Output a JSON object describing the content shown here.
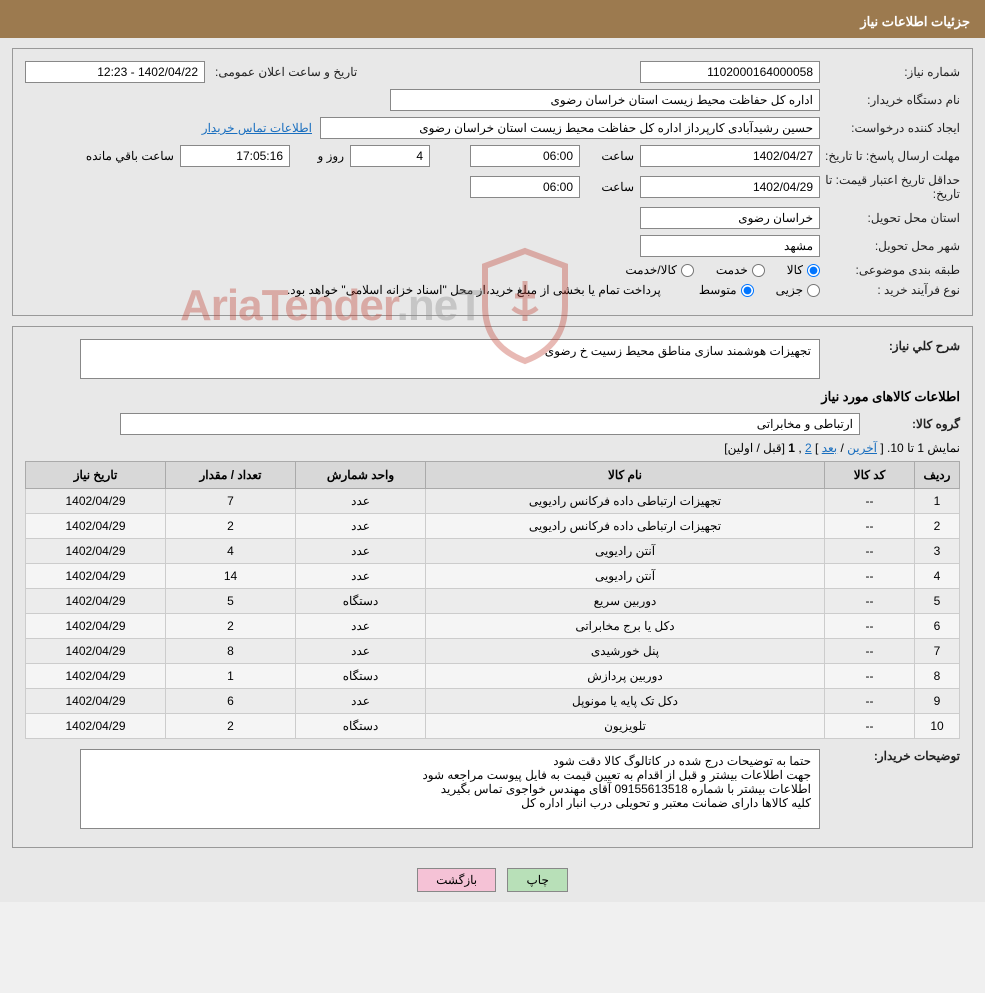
{
  "title": "جزئیات اطلاعات نیاز",
  "need_no_label": "شماره نیاز:",
  "need_no": "1102000164000058",
  "pub_date_label": "تاریخ و ساعت اعلان عمومی:",
  "pub_date": "1402/04/22 - 12:23",
  "buyer_label": "نام دستگاه خریدار:",
  "buyer": "اداره کل حفاظت محیط زیست استان خراسان رضوی",
  "requester_label": "ایجاد کننده درخواست:",
  "requester": "حسین رشیدآبادی کارپرداز اداره کل حفاظت محیط زیست استان خراسان رضوی",
  "contact_link": "اطلاعات تماس خریدار",
  "deadline_label": "مهلت ارسال پاسخ:",
  "till_date_label": "تا تاریخ:",
  "time_label": "ساعت",
  "deadline_date": "1402/04/27",
  "deadline_time": "06:00",
  "days": "4",
  "days_label": "روز و",
  "countdown": "17:05:16",
  "remain_label": "ساعت باقي مانده",
  "validity_label": "حداقل تاریخ اعتبار قیمت:",
  "validity_date": "1402/04/29",
  "validity_time": "06:00",
  "province_label": "استان محل تحویل:",
  "province": "خراسان رضوی",
  "city_label": "شهر محل تحویل:",
  "city": "مشهد",
  "category_label": "طبقه بندی موضوعی:",
  "cat_goods": "کالا",
  "cat_service": "خدمت",
  "cat_both": "کالا/خدمت",
  "proc_type_label": "نوع فرآیند خرید :",
  "proc_partial": "جزیی",
  "proc_medium": "متوسط",
  "proc_note": "پرداخت تمام یا بخشی از مبلغ خرید،از محل \"اسناد خزانه اسلامی\" خواهد بود.",
  "desc_label": "شرح کلي نیاز:",
  "desc": "تجهیزات هوشمند سازی مناطق محیط زسیت خ رضوی",
  "goods_info_label": "اطلاعات کالاهای مورد نیاز",
  "group_label": "گروه کالا:",
  "group": "ارتباطی و مخابراتی",
  "pager_text": "نمایش 1 تا 10.",
  "pager_last": "آخرین",
  "pager_next": "بعد",
  "pager_2": "2",
  "pager_1": "1",
  "pager_prev": "قبل",
  "pager_first": "اولین",
  "cols": {
    "idx": "ردیف",
    "code": "کد کالا",
    "name": "نام کالا",
    "unit": "واحد شمارش",
    "qty": "تعداد / مقدار",
    "date": "تاریخ نیاز"
  },
  "rows": [
    {
      "idx": "1",
      "code": "--",
      "name": "تجهیزات ارتباطی داده فرکانس رادیویی",
      "unit": "عدد",
      "qty": "7",
      "date": "1402/04/29"
    },
    {
      "idx": "2",
      "code": "--",
      "name": "تجهیزات ارتباطی داده فرکانس رادیویی",
      "unit": "عدد",
      "qty": "2",
      "date": "1402/04/29"
    },
    {
      "idx": "3",
      "code": "--",
      "name": "آنتن رادیویی",
      "unit": "عدد",
      "qty": "4",
      "date": "1402/04/29"
    },
    {
      "idx": "4",
      "code": "--",
      "name": "آنتن رادیویی",
      "unit": "عدد",
      "qty": "14",
      "date": "1402/04/29"
    },
    {
      "idx": "5",
      "code": "--",
      "name": "دوربین سریع",
      "unit": "دستگاه",
      "qty": "5",
      "date": "1402/04/29"
    },
    {
      "idx": "6",
      "code": "--",
      "name": "دکل یا برج مخابراتی",
      "unit": "عدد",
      "qty": "2",
      "date": "1402/04/29"
    },
    {
      "idx": "7",
      "code": "--",
      "name": "پنل خورشیدی",
      "unit": "عدد",
      "qty": "8",
      "date": "1402/04/29"
    },
    {
      "idx": "8",
      "code": "--",
      "name": "دوربین پردازش",
      "unit": "دستگاه",
      "qty": "1",
      "date": "1402/04/29"
    },
    {
      "idx": "9",
      "code": "--",
      "name": "دکل تک پایه یا مونوپل",
      "unit": "عدد",
      "qty": "6",
      "date": "1402/04/29"
    },
    {
      "idx": "10",
      "code": "--",
      "name": "تلویزیون",
      "unit": "دستگاه",
      "qty": "2",
      "date": "1402/04/29"
    }
  ],
  "buyer_notes_label": "توضیحات خریدار:",
  "buyer_notes": "حتما به توضیحات درج شده در کاتالوگ کالا دقت شود\nجهت اطلاعات بیشتر و قبل از اقدام به تعیین قیمت به فایل پیوست مراجعه شود\nاطلاعات بیشتر با شماره 09155613518 آقای مهندس خواجوی تماس بگیرید\nکلیه کالاها دارای ضمانت معتبر و تحویلی درب انبار اداره کل",
  "btn_print": "چاپ",
  "btn_back": "بازگشت",
  "wm_brand": "AriaTender",
  "wm_suffix": ".neT"
}
